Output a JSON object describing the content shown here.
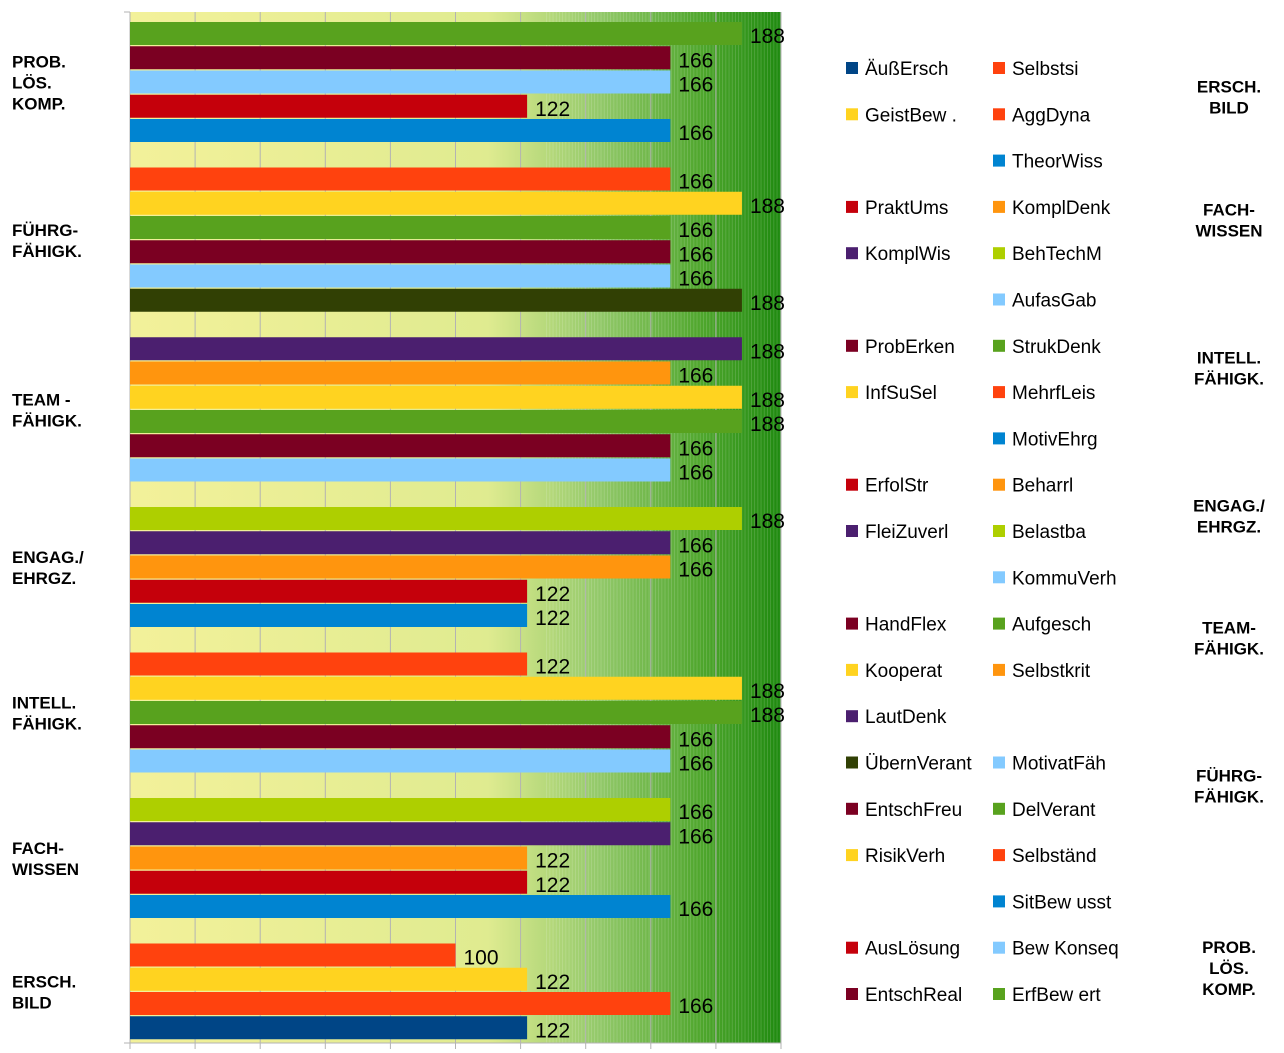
{
  "chart_data": {
    "type": "bar",
    "orientation": "horizontal",
    "xlim": [
      0,
      200
    ],
    "grid": true,
    "legend_position": "right",
    "groups": [
      {
        "label": "PROB.\nLÖS.\nKOMP.",
        "bars": [
          {
            "name": "ErfBewert",
            "value": 188,
            "color": "#58a21e"
          },
          {
            "name": "EntschReal",
            "value": 166,
            "color": "#7b0022"
          },
          {
            "name": "BewKonseq",
            "value": 166,
            "color": "#83caff"
          },
          {
            "name": "AusLösung",
            "value": 122,
            "color": "#c5000b"
          },
          {
            "name": "SitBewusst",
            "value": 166,
            "color": "#0084d1"
          }
        ]
      },
      {
        "label": "FÜHRG-\nFÄHIGK.",
        "bars": [
          {
            "name": "Selbständ",
            "value": 166,
            "color": "#ff420e"
          },
          {
            "name": "RisikVerh",
            "value": 188,
            "color": "#ffd320"
          },
          {
            "name": "DelVerant",
            "value": 166,
            "color": "#58a21e"
          },
          {
            "name": "EntschFreu",
            "value": 166,
            "color": "#7b0022"
          },
          {
            "name": "MotivatFäh",
            "value": 166,
            "color": "#83caff"
          },
          {
            "name": "ÜbernVerant",
            "value": 188,
            "color": "#314004"
          }
        ]
      },
      {
        "label": "TEAM -\nFÄHIGK.",
        "bars": [
          {
            "name": "LautDenk",
            "value": 188,
            "color": "#4b1f6f"
          },
          {
            "name": "Selbstkrit",
            "value": 166,
            "color": "#ff950e"
          },
          {
            "name": "Kooperat",
            "value": 188,
            "color": "#ffd320"
          },
          {
            "name": "Aufgesch",
            "value": 188,
            "color": "#58a21e"
          },
          {
            "name": "HandFlex",
            "value": 166,
            "color": "#7b0022"
          },
          {
            "name": "KommuVerh",
            "value": 166,
            "color": "#83caff"
          }
        ]
      },
      {
        "label": "ENGAG./\nEHRGZ.",
        "bars": [
          {
            "name": "Belastba",
            "value": 188,
            "color": "#aecf00"
          },
          {
            "name": "FleiZuverl",
            "value": 166,
            "color": "#4b1f6f"
          },
          {
            "name": "Beharrl",
            "value": 166,
            "color": "#ff950e"
          },
          {
            "name": "ErfolStr",
            "value": 122,
            "color": "#c5000b"
          },
          {
            "name": "MotivEhrg",
            "value": 122,
            "color": "#0084d1"
          }
        ]
      },
      {
        "label": "INTELL.\nFÄHIGK.",
        "bars": [
          {
            "name": "MehrfLeis",
            "value": 122,
            "color": "#ff420e"
          },
          {
            "name": "InfSuSel",
            "value": 188,
            "color": "#ffd320"
          },
          {
            "name": "StrukDenk",
            "value": 188,
            "color": "#58a21e"
          },
          {
            "name": "ProbErken",
            "value": 166,
            "color": "#7b0022"
          },
          {
            "name": "AufasGab",
            "value": 166,
            "color": "#83caff"
          }
        ]
      },
      {
        "label": "FACH-\nWISSEN",
        "bars": [
          {
            "name": "BehTechM",
            "value": 166,
            "color": "#aecf00"
          },
          {
            "name": "KomplWis",
            "value": 166,
            "color": "#4b1f6f"
          },
          {
            "name": "KomplDenk",
            "value": 122,
            "color": "#ff950e"
          },
          {
            "name": "PraktUms",
            "value": 122,
            "color": "#c5000b"
          },
          {
            "name": "TheorWiss",
            "value": 166,
            "color": "#0084d1"
          }
        ]
      },
      {
        "label": "ERSCH.\nBILD",
        "bars": [
          {
            "name": "AggDyna",
            "value": 100,
            "color": "#ff420e"
          },
          {
            "name": "GeistBew .",
            "value": 122,
            "color": "#ffd320"
          },
          {
            "name": "Selbstsi",
            "value": 166,
            "color": "#ff420e"
          },
          {
            "name": "ÄußErsch",
            "value": 122,
            "color": "#004586"
          }
        ]
      }
    ],
    "legend_left": [
      {
        "label": "ÄußErsch",
        "color": "#004586"
      },
      {
        "label": "GeistBew .",
        "color": "#ffd320"
      },
      {
        "label": "",
        "color": ""
      },
      {
        "label": "PraktUms",
        "color": "#c5000b"
      },
      {
        "label": "KomplWis",
        "color": "#4b1f6f"
      },
      {
        "label": "",
        "color": ""
      },
      {
        "label": "ProbErken",
        "color": "#7b0022"
      },
      {
        "label": "InfSuSel",
        "color": "#ffd320"
      },
      {
        "label": "",
        "color": ""
      },
      {
        "label": "ErfolStr",
        "color": "#c5000b"
      },
      {
        "label": "FleiZuverl",
        "color": "#4b1f6f"
      },
      {
        "label": "",
        "color": ""
      },
      {
        "label": "HandFlex",
        "color": "#7b0022"
      },
      {
        "label": "Kooperat",
        "color": "#ffd320"
      },
      {
        "label": "LautDenk",
        "color": "#4b1f6f"
      },
      {
        "label": "ÜbernVerant",
        "color": "#314004"
      },
      {
        "label": "EntschFreu",
        "color": "#7b0022"
      },
      {
        "label": "RisikVerh",
        "color": "#ffd320"
      },
      {
        "label": "",
        "color": ""
      },
      {
        "label": "AusLösung",
        "color": "#c5000b"
      },
      {
        "label": "EntschReal",
        "color": "#7b0022"
      }
    ],
    "legend_right": [
      {
        "label": "Selbstsi",
        "color": "#ff420e"
      },
      {
        "label": "AggDyna",
        "color": "#ff420e"
      },
      {
        "label": "TheorWiss",
        "color": "#0084d1"
      },
      {
        "label": "KomplDenk",
        "color": "#ff950e"
      },
      {
        "label": "BehTechM",
        "color": "#aecf00"
      },
      {
        "label": "AufasGab",
        "color": "#83caff"
      },
      {
        "label": "StrukDenk",
        "color": "#58a21e"
      },
      {
        "label": "MehrfLeis",
        "color": "#ff420e"
      },
      {
        "label": "MotivEhrg",
        "color": "#0084d1"
      },
      {
        "label": "Beharrl",
        "color": "#ff950e"
      },
      {
        "label": "Belastba",
        "color": "#aecf00"
      },
      {
        "label": "KommuVerh",
        "color": "#83caff"
      },
      {
        "label": "Aufgesch",
        "color": "#58a21e"
      },
      {
        "label": "Selbstkrit",
        "color": "#ff950e"
      },
      {
        "label": "",
        "color": ""
      },
      {
        "label": "MotivatFäh",
        "color": "#83caff"
      },
      {
        "label": "DelVerant",
        "color": "#58a21e"
      },
      {
        "label": "Selbständ",
        "color": "#ff420e"
      },
      {
        "label": "SitBew usst",
        "color": "#0084d1"
      },
      {
        "label": "Bew Konseq",
        "color": "#83caff"
      },
      {
        "label": "ErfBew ert",
        "color": "#58a21e"
      }
    ],
    "right_labels": [
      "ERSCH.\nBILD",
      "FACH-\nWISSEN",
      "INTELL.\nFÄHIGK.",
      "ENGAG./\nEHRGZ.",
      "TEAM-\nFÄHIGK.",
      "FÜHRG-\nFÄHIGK.",
      "PROB.\nLÖS.\nKOMP."
    ]
  }
}
